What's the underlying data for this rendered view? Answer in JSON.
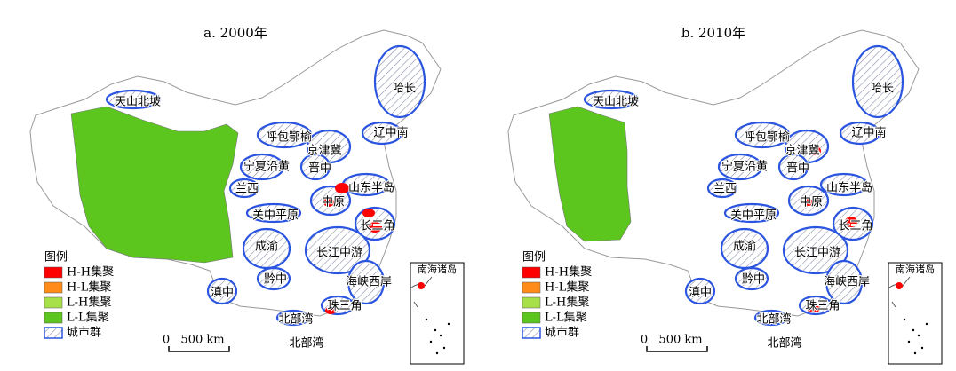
{
  "panels": [
    {
      "title": "a. 2000年",
      "clusters": [
        "天山北坡",
        "哈长",
        "呼包鄂榆",
        "京津冀",
        "辽中南",
        "宁夏沿黄",
        "晋中",
        "山东半岛",
        "兰西",
        "中原",
        "关中平原",
        "长三角",
        "成渝",
        "长江中游",
        "黔中",
        "滇中",
        "海峡西岸",
        "珠三角",
        "北部湾"
      ],
      "sea_label": "北部湾"
    },
    {
      "title": "b. 2010年",
      "clusters": [
        "天山北坡",
        "哈长",
        "呼包鄂榆",
        "京津冀",
        "辽中南",
        "宁夏沿黄",
        "晋中",
        "山东半岛",
        "兰西",
        "中原",
        "关中平原",
        "长三角",
        "成渝",
        "长江中游",
        "黔中",
        "滇中",
        "海峡西岸",
        "珠三角",
        "北部湾"
      ],
      "sea_label": "北部湾"
    }
  ],
  "legend": {
    "title": "图例",
    "items": [
      {
        "label": "H-H集聚",
        "color": "#ff0000"
      },
      {
        "label": "H-L集聚",
        "color": "#ff8c1a"
      },
      {
        "label": "L-H集聚",
        "color": "#a8e04a"
      },
      {
        "label": "L-L集聚",
        "color": "#5cc51e"
      }
    ],
    "hatch_label": "城市群"
  },
  "scale": {
    "zero": "0",
    "distance": "500 km"
  },
  "inset": "南海诸岛"
}
